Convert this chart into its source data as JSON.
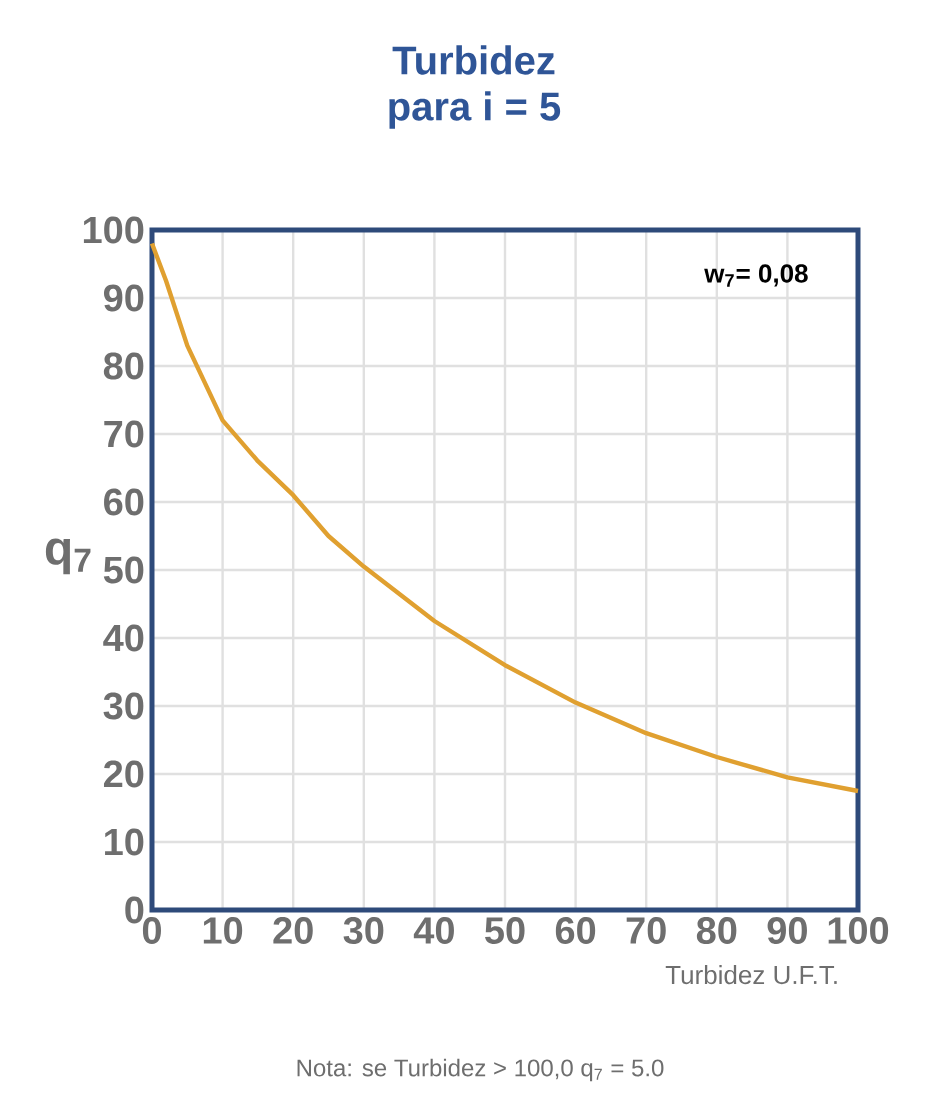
{
  "chart_data": {
    "type": "line",
    "title": "Turbidez",
    "subtitle": "para i = 5",
    "xlabel": "Turbidez U.F.T.",
    "ylabel": "q$_{7}$",
    "annotations": [
      "w$_{7}$= 0,08",
      "Nota: se Turbidez > 100,0  q$_{7}$ = 5.0"
    ],
    "x": [
      0,
      2,
      5,
      10,
      15,
      20,
      25,
      30,
      40,
      50,
      60,
      70,
      80,
      90,
      100
    ],
    "series": [
      {
        "color": "#e0a030",
        "values": [
          98,
          92.5,
          83,
          72,
          66,
          61,
          55,
          50.5,
          42.5,
          36,
          30.5,
          26,
          22.5,
          19.5,
          17.5
        ]
      }
    ],
    "xlim": [
      0,
      100
    ],
    "ylim": [
      0,
      100
    ],
    "xticks": [
      0,
      10,
      20,
      30,
      40,
      50,
      60,
      70,
      80,
      90,
      100
    ],
    "yticks": [
      0,
      10,
      20,
      30,
      40,
      50,
      60,
      70,
      80,
      90,
      100
    ],
    "grid": true,
    "marker": "none",
    "line_style": "solid"
  }
}
